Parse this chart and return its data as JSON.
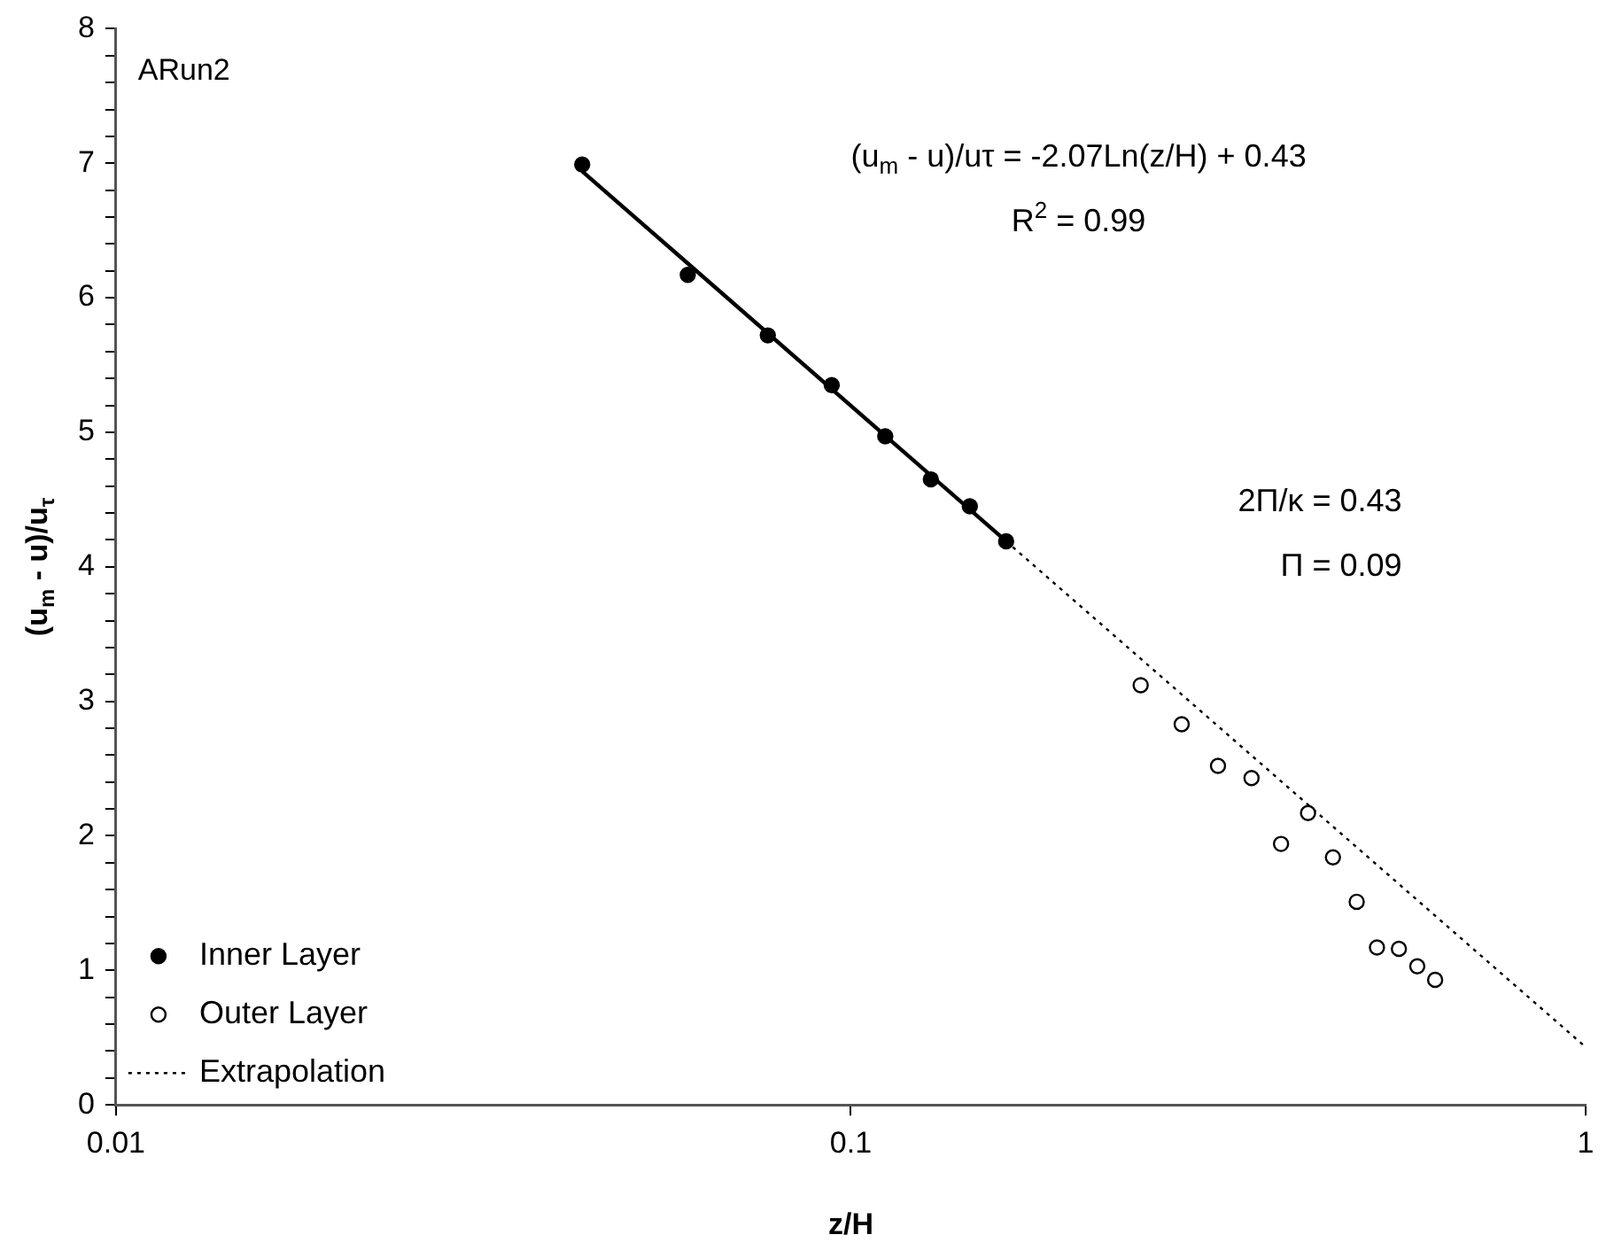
{
  "chart_data": {
    "type": "scatter",
    "xlabel": "z/H",
    "ylabel": "(u$_{m}$ - u)/u$_{τ}$",
    "log": "x",
    "xlim": [
      0.01,
      1
    ],
    "xticks": [
      0.01,
      0.1,
      1
    ],
    "ylim": [
      0,
      8
    ],
    "yticks": [
      0,
      {
        "value": 0.2,
        "label": null
      },
      {
        "value": 0.4,
        "label": null
      },
      {
        "value": 0.6,
        "label": null
      },
      {
        "value": 0.8,
        "label": null
      },
      1,
      {
        "value": 1.2,
        "label": null
      },
      {
        "value": 1.4,
        "label": null
      },
      {
        "value": 1.6,
        "label": null
      },
      {
        "value": 1.8,
        "label": null
      },
      2,
      {
        "value": 2.2,
        "label": null
      },
      {
        "value": 2.4,
        "label": null
      },
      {
        "value": 2.6,
        "label": null
      },
      {
        "value": 2.8,
        "label": null
      },
      3,
      {
        "value": 3.2,
        "label": null
      },
      {
        "value": 3.4,
        "label": null
      },
      {
        "value": 3.6,
        "label": null
      },
      {
        "value": 3.8,
        "label": null
      },
      4,
      {
        "value": 4.2,
        "label": null
      },
      {
        "value": 4.4,
        "label": null
      },
      {
        "value": 4.6,
        "label": null
      },
      {
        "value": 4.8,
        "label": null
      },
      5,
      {
        "value": 5.2,
        "label": null
      },
      {
        "value": 5.4,
        "label": null
      },
      {
        "value": 5.6,
        "label": null
      },
      {
        "value": 5.8,
        "label": null
      },
      6,
      {
        "value": 6.2,
        "label": null
      },
      {
        "value": 6.4,
        "label": null
      },
      {
        "value": 6.6,
        "label": null
      },
      {
        "value": 6.8,
        "label": null
      },
      7,
      {
        "value": 7.2,
        "label": null
      },
      {
        "value": 7.4,
        "label": null
      },
      {
        "value": 7.6,
        "label": null
      },
      {
        "value": 7.8,
        "label": null
      },
      8
    ],
    "grid": false,
    "legend": "bottom left",
    "series": [
      {
        "name": "Inner Layer",
        "type": "scatter",
        "marker": "circle",
        "color": "#000000",
        "x": [
          0.0431,
          0.06,
          0.0771,
          0.0942,
          0.1114,
          0.1285,
          0.1452,
          0.1627
        ],
        "values": [
          6.99,
          6.17,
          5.72,
          5.35,
          4.97,
          4.65,
          4.45,
          4.19
        ]
      },
      {
        "name": "Outer Layer",
        "type": "scatter",
        "marker": "circle",
        "color": "#000000",
        "x": [
          0.248,
          0.282,
          0.316,
          0.351,
          0.385,
          0.419,
          0.453,
          0.488,
          0.52,
          0.557,
          0.59,
          0.624
        ],
        "values": [
          3.12,
          2.83,
          2.52,
          2.43,
          1.94,
          2.17,
          1.84,
          1.51,
          1.17,
          1.16,
          1.03,
          0.93
        ]
      },
      {
        "type": "line",
        "marker": "none",
        "line_style": "solid",
        "color": "#000000",
        "x": [
          0.0431,
          0.1627
        ],
        "values": [
          6.94,
          4.19
        ]
      },
      {
        "name": "Extrapolation",
        "type": "line",
        "marker": "none",
        "line_style": "dotted",
        "color": "#000000",
        "x": [
          0.1627,
          1
        ],
        "values": [
          4.19,
          0.43
        ]
      }
    ],
    "annotations": [
      "ARun2",
      "(u$_{m}$ - u)/uτ = -2.07Ln(z/H) + 0.43",
      "R$^{2}$ = 0.99",
      "2Π/κ = 0.43",
      "Π = 0.09"
    ]
  }
}
